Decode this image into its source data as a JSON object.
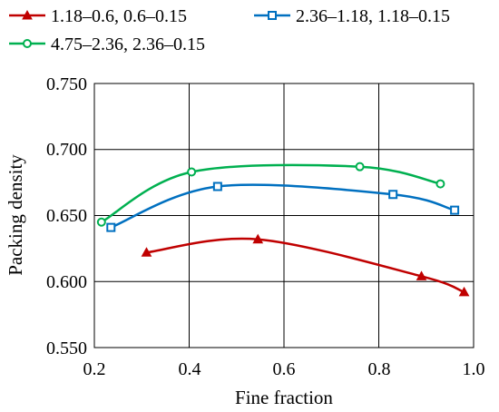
{
  "chart_data": {
    "type": "scatter",
    "xlabel": "Fine fraction",
    "ylabel": "Packing density",
    "xlim": [
      0.2,
      1.0
    ],
    "ylim": [
      0.55,
      0.75
    ],
    "xticks": [
      "0.2",
      "0.4",
      "0.6",
      "0.8",
      "1.0"
    ],
    "yticks": [
      "0.550",
      "0.600",
      "0.650",
      "0.700",
      "0.750"
    ],
    "grid": true,
    "legend_position": "top",
    "series": [
      {
        "name": "1.18–0.6, 0.6–0.15",
        "color": "#c00000",
        "marker": "triangle",
        "x": [
          0.31,
          0.545,
          0.89,
          0.98
        ],
        "y": [
          0.622,
          0.632,
          0.604,
          0.592
        ]
      },
      {
        "name": "2.36–1.18, 1.18–0.15",
        "color": "#0070c0",
        "marker": "square",
        "x": [
          0.235,
          0.46,
          0.83,
          0.96
        ],
        "y": [
          0.641,
          0.672,
          0.666,
          0.654
        ]
      },
      {
        "name": "4.75–2.36, 2.36–0.15",
        "color": "#00b050",
        "marker": "circle",
        "x": [
          0.215,
          0.405,
          0.76,
          0.93
        ],
        "y": [
          0.645,
          0.683,
          0.687,
          0.674
        ]
      }
    ]
  }
}
